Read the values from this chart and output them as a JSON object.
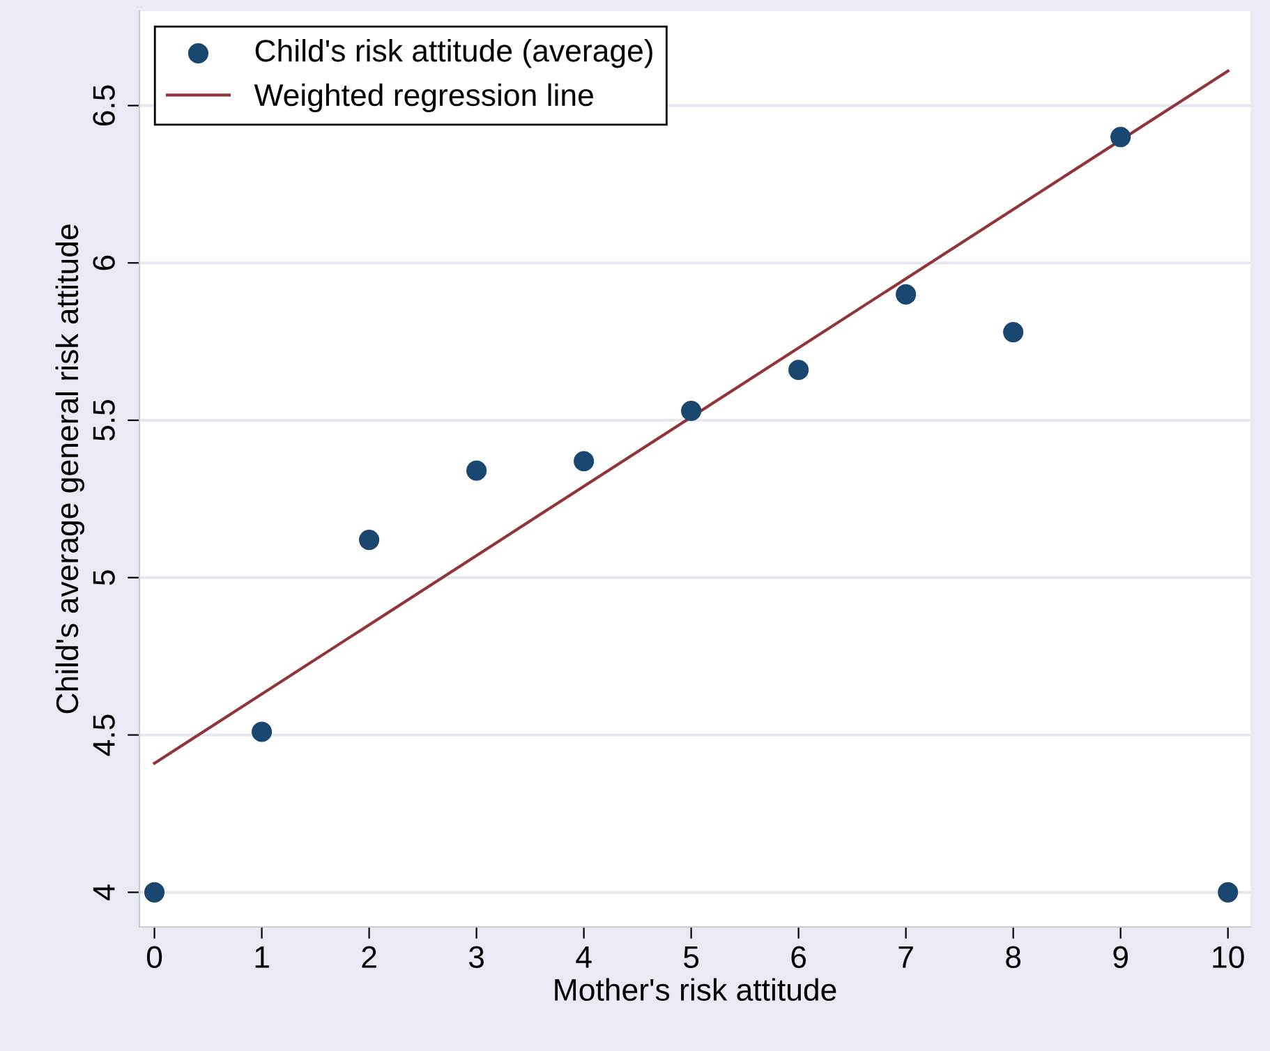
{
  "chart_data": {
    "type": "scatter",
    "xlabel": "Mother's risk attitude",
    "ylabel": "Child's average general risk attitude",
    "x": [
      0,
      1,
      2,
      3,
      4,
      5,
      6,
      7,
      8,
      9,
      10
    ],
    "series": [
      {
        "name": "Child's risk attitude (average)",
        "color": "#1a476f",
        "marker": "circle",
        "values": [
          4.0,
          4.51,
          5.12,
          5.34,
          5.37,
          5.53,
          5.66,
          5.9,
          5.78,
          6.4,
          4.0
        ]
      },
      {
        "name": "Weighted regression line",
        "type": "line",
        "color": "#90353b",
        "x": [
          0,
          10
        ],
        "values": [
          4.41,
          6.61
        ],
        "marker": "none",
        "line_style": "solid"
      }
    ],
    "xlim": [
      -0.14,
      10.21
    ],
    "ylim": [
      3.89,
      6.8
    ],
    "xticks": [
      0,
      1,
      2,
      3,
      4,
      5,
      6,
      7,
      8,
      9,
      10
    ],
    "yticks": [
      4,
      4.5,
      5,
      5.5,
      6,
      6.5
    ],
    "grid": "y",
    "legend": "top left"
  }
}
